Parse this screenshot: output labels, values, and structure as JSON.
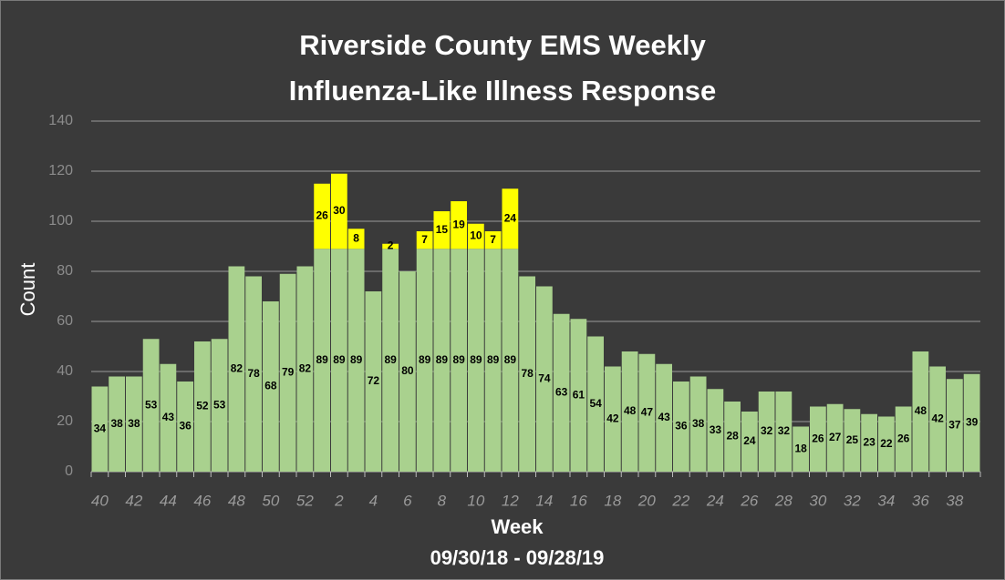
{
  "chart_data": {
    "type": "stacked_bar",
    "title": [
      "Riverside County EMS Weekly",
      "Influenza-Like Illness Response"
    ],
    "x_label": "Week",
    "subtitle": "09/30/18 - 09/28/19",
    "y_label": "Count",
    "categories": [
      "40",
      null,
      "42",
      null,
      "44",
      null,
      "46",
      null,
      "48",
      null,
      "50",
      null,
      "52",
      null,
      "2",
      null,
      "4",
      null,
      "6",
      null,
      "8",
      null,
      "10",
      null,
      "12",
      null,
      "14",
      null,
      "16",
      null,
      "18",
      null,
      "20",
      null,
      "22",
      null,
      "24",
      null,
      "26",
      null,
      "28",
      null,
      "30",
      null,
      "32",
      null,
      "34",
      null,
      "36",
      null,
      "38",
      null
    ],
    "series": [
      {
        "color": "#a9d18e",
        "values": [
          34,
          38,
          38,
          53,
          43,
          36,
          52,
          53,
          82,
          78,
          68,
          79,
          82,
          89,
          89,
          89,
          72,
          89,
          80,
          89,
          89,
          89,
          89,
          89,
          89,
          78,
          74,
          63,
          61,
          54,
          42,
          48,
          47,
          43,
          36,
          38,
          33,
          28,
          24,
          32,
          32,
          18,
          26,
          27,
          25,
          23,
          22,
          26,
          48,
          42,
          37,
          39
        ]
      },
      {
        "color": "#ffff00",
        "values": [
          null,
          null,
          null,
          null,
          null,
          null,
          null,
          null,
          null,
          null,
          null,
          null,
          null,
          26,
          30,
          8,
          null,
          2,
          null,
          7,
          15,
          19,
          10,
          7,
          24,
          null,
          null,
          null,
          null,
          null,
          null,
          null,
          null,
          null,
          null,
          null,
          null,
          null,
          null,
          null,
          null,
          null,
          null,
          null,
          null,
          null,
          null,
          null,
          null,
          null,
          null,
          null
        ]
      }
    ],
    "ylim": [
      0,
      140
    ],
    "yticks": [
      0,
      20,
      40,
      60,
      80,
      100,
      120,
      140
    ],
    "grid": true
  }
}
